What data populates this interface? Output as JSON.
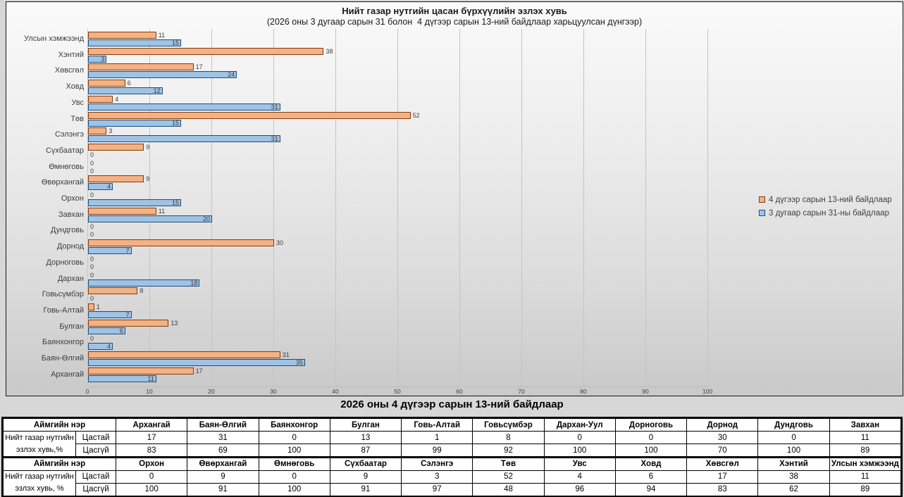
{
  "chart": {
    "title": "Нийт газар нутгийн цасан бүрхүүлийн эзлэх хувь",
    "subtitle": "(2026 оны 3 дугаар сарын 31 болон  4 дүгээр сарын 13-ний байдлаар харьцуулсан дүнгээр)",
    "legend": [
      {
        "label": "4 дүгээр сарын 13-ний байдлаар",
        "fill": "#F4B183",
        "border": "#843C0C"
      },
      {
        "label": "3 дугаар сарын 31-ны байдлаар",
        "fill": "#9DC3E6",
        "border": "#1F4E79"
      }
    ]
  },
  "chart_data": {
    "type": "bar",
    "orientation": "horizontal",
    "title": "Нийт газар нутгийн цасан бүрхүүлийн эзлэх хувь",
    "subtitle": "(2026 оны 3 дугаар сарын 31 болон  4 дүгээр сарын 13-ний байдлаар харьцуулсан дүнгээр)",
    "categories": [
      "Улсын хэмжээнд",
      "Хэнтий",
      "Хөвсгөл",
      "Ховд",
      "Увс",
      "Төв",
      "Сэлэнгэ",
      "Сүхбаатар",
      "Өмнөговь",
      "Өвөрхангай",
      "Орхон",
      "Завхан",
      "Дундговь",
      "Дорнод",
      "Дорноговь",
      "Дархан",
      "Говьсүмбэр",
      "Говь-Алтай",
      "Булган",
      "Баянхонгор",
      "Баян-Өлгий",
      "Архангай"
    ],
    "series": [
      {
        "name": "4 дүгээр сарын 13-ний байдлаар",
        "color": "#F4B183",
        "border": "#843C0C",
        "values": [
          11,
          38,
          17,
          6,
          4,
          52,
          3,
          9,
          0,
          9,
          0,
          11,
          0,
          30,
          0,
          0,
          8,
          1,
          13,
          0,
          31,
          17
        ]
      },
      {
        "name": "3 дугаар сарын 31-ны байдлаар",
        "color": "#9DC3E6",
        "border": "#1F4E79",
        "values": [
          15,
          3,
          24,
          12,
          31,
          15,
          31,
          0,
          0,
          4,
          15,
          20,
          0,
          7,
          0,
          18,
          0,
          7,
          6,
          4,
          35,
          11
        ]
      }
    ],
    "xlabel": "",
    "ylabel": "",
    "xlim": [
      0,
      100
    ],
    "xticks": [
      0,
      10,
      20,
      30,
      40,
      50,
      60,
      70,
      80,
      90,
      100
    ],
    "grid": true,
    "legend_position": "right",
    "data_labels": true
  },
  "table": {
    "title": "2026 оны 4 дүгээр сарын 13-ний байдлаар",
    "sections": [
      {
        "corner_header": "Аймгийн нэр",
        "row_label_lines": [
          "Нийт газар нутгийн",
          "эзлэх хувь,%"
        ],
        "subrow_labels": [
          "Цастай",
          "Цасгүй"
        ],
        "columns": [
          "Архангай",
          "Баян-Өлгий",
          "Баянхонгор",
          "Булган",
          "Говь-Алтай",
          "Говьсүмбэр",
          "Дархан-Уул",
          "Дорноговь",
          "Дорнод",
          "Дундговь",
          "Завхан"
        ],
        "rows": [
          [
            17,
            31,
            0,
            13,
            1,
            8,
            0,
            0,
            30,
            0,
            11
          ],
          [
            83,
            69,
            100,
            87,
            99,
            92,
            100,
            100,
            70,
            100,
            89
          ]
        ]
      },
      {
        "corner_header": "Аймгийн нэр",
        "row_label_lines": [
          "Нийт газар нутгийн",
          "эзлэх хувь, %"
        ],
        "subrow_labels": [
          "Цастай",
          "Цасгүй"
        ],
        "columns": [
          "Орхон",
          "Өвөрхангай",
          "Өмнөговь",
          "Сүхбаатар",
          "Сэлэнгэ",
          "Төв",
          "Увс",
          "Ховд",
          "Хөвсгөл",
          "Хэнтий",
          "Улсын хэмжээнд"
        ],
        "rows": [
          [
            0,
            9,
            0,
            9,
            3,
            52,
            4,
            6,
            17,
            38,
            11
          ],
          [
            100,
            91,
            100,
            91,
            97,
            48,
            96,
            94,
            83,
            62,
            89
          ]
        ]
      }
    ]
  }
}
